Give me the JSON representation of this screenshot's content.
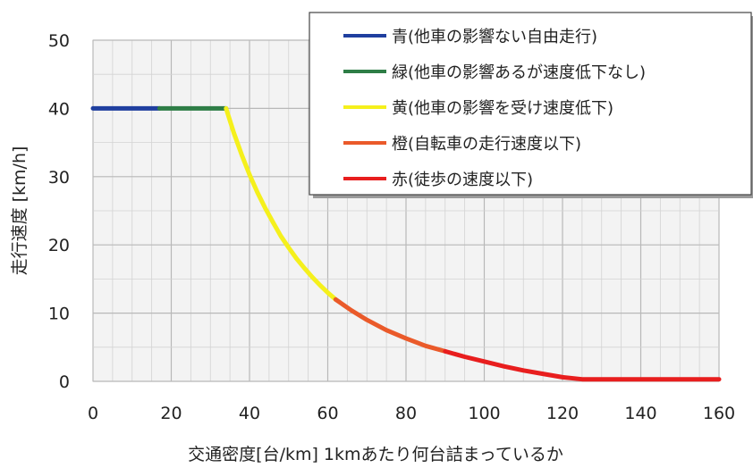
{
  "chart_data": {
    "type": "line",
    "title": "",
    "xlabel": "交通密度[台/km] 1kmあたり何台詰まっているか",
    "ylabel": "走行速度 [km/h]",
    "xlim": [
      0,
      160
    ],
    "ylim": [
      0,
      50
    ],
    "x_ticks": [
      "0",
      "20",
      "40",
      "60",
      "80",
      "100",
      "120",
      "140",
      "160"
    ],
    "y_ticks": [
      "0",
      "10",
      "20",
      "30",
      "40",
      "50"
    ],
    "grid": true,
    "legend_position": "top-right",
    "series": [
      {
        "name": "青(他車の影響ない自由走行)",
        "color": "#1f3f9f",
        "x": [
          0,
          17
        ],
        "y": [
          40,
          40
        ]
      },
      {
        "name": "緑(他車の影響あるが速度低下なし)",
        "color": "#2e7d46",
        "x": [
          17,
          34
        ],
        "y": [
          40,
          40
        ]
      },
      {
        "name": "黄(他車の影響を受け速度低下)",
        "color": "#f5f01c",
        "x": [
          34,
          36,
          38,
          40,
          42,
          44,
          46,
          48,
          50,
          52,
          54,
          56,
          58,
          60,
          62
        ],
        "y": [
          40,
          36.4,
          33.2,
          30.3,
          27.7,
          25.4,
          23.3,
          21.3,
          19.6,
          18.0,
          16.6,
          15.3,
          14.1,
          13.0,
          12.0
        ]
      },
      {
        "name": "橙(自転車の走行速度以下)",
        "color": "#ea5a2a",
        "x": [
          62,
          66,
          70,
          75,
          80,
          85,
          90
        ],
        "y": [
          12.0,
          10.4,
          9.0,
          7.5,
          6.3,
          5.2,
          4.4
        ]
      },
      {
        "name": "赤(徒歩の速度以下)",
        "color": "#e81e1e",
        "x": [
          90,
          95,
          100,
          105,
          110,
          115,
          120,
          125,
          130,
          140,
          150,
          160
        ],
        "y": [
          4.4,
          3.6,
          2.9,
          2.2,
          1.6,
          1.1,
          0.6,
          0.3,
          0.3,
          0.3,
          0.3,
          0.3
        ]
      }
    ]
  }
}
